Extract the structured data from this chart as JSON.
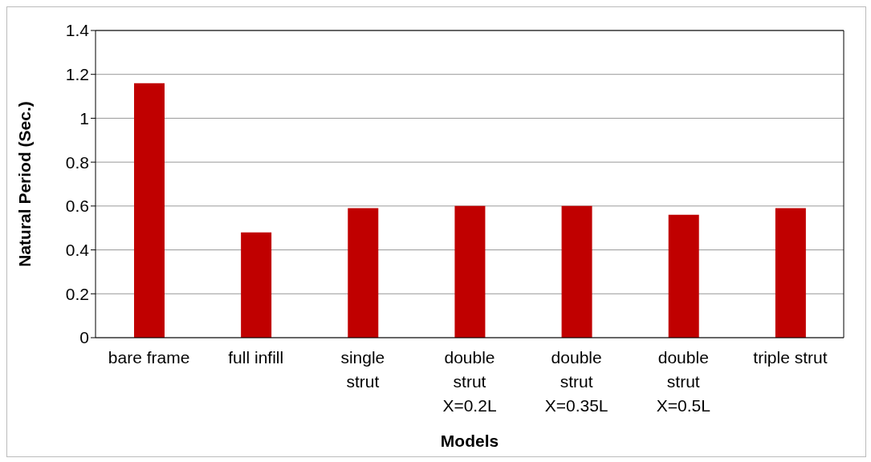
{
  "chart_data": {
    "type": "bar",
    "xlabel": "Models",
    "ylabel": "Natural Period (Sec.)",
    "categories": [
      "bare frame",
      "full infill",
      "single\nstrut",
      "double\nstrut\nX=0.2L",
      "double\nstrut\nX=0.35L",
      "double\nstrut\nX=0.5L",
      "triple strut"
    ],
    "values": [
      1.16,
      0.48,
      0.59,
      0.6,
      0.6,
      0.56,
      0.59
    ],
    "color": "#c00000",
    "ylim": [
      0,
      1.4
    ],
    "yticks": [
      0,
      0.2,
      0.4,
      0.6,
      0.8,
      1,
      1.2,
      1.4
    ],
    "grid": "y"
  }
}
